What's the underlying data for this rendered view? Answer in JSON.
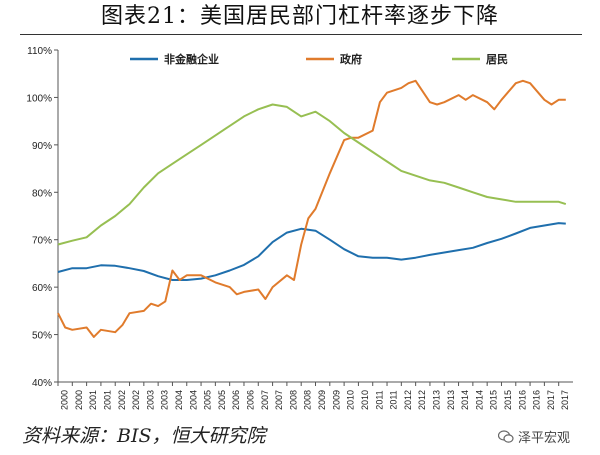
{
  "title": "图表21：美国居民部门杠杆率逐步下降",
  "source": "资料来源：BIS，恒大研究院",
  "watermark": "泽平宏观",
  "colors": {
    "nonfin": "#1f6fad",
    "gov": "#e07b2c",
    "household": "#97bf52",
    "axis": "#555555"
  },
  "chart_data": {
    "type": "line",
    "ylim": [
      40,
      110
    ],
    "y_ticks": [
      "40%",
      "50%",
      "60%",
      "70%",
      "80%",
      "90%",
      "100%",
      "110%"
    ],
    "y_tick_values": [
      40,
      50,
      60,
      70,
      80,
      90,
      100,
      110
    ],
    "x_ticks": [
      "2000",
      "2000",
      "2001",
      "2001",
      "2002",
      "2002",
      "2003",
      "2003",
      "2004",
      "2004",
      "2005",
      "2005",
      "2006",
      "2006",
      "2007",
      "2007",
      "2008",
      "2008",
      "2009",
      "2009",
      "2010",
      "2010",
      "2011",
      "2011",
      "2012",
      "2012",
      "2013",
      "2013",
      "2014",
      "2014",
      "2015",
      "2015",
      "2016",
      "2016",
      "2017",
      "2017"
    ],
    "x_start": 2000.0,
    "x_end": 2018.0,
    "legend": [
      "非金融企业",
      "政府",
      "居民"
    ],
    "legend_position": "top",
    "series": [
      {
        "name": "非金融企业",
        "color_key": "nonfin",
        "x": [
          2000.0,
          2000.5,
          2001.0,
          2001.5,
          2002.0,
          2002.5,
          2003.0,
          2003.5,
          2004.0,
          2004.5,
          2005.0,
          2005.5,
          2006.0,
          2006.5,
          2007.0,
          2007.5,
          2008.0,
          2008.5,
          2009.0,
          2009.5,
          2010.0,
          2010.5,
          2011.0,
          2011.5,
          2012.0,
          2012.5,
          2013.0,
          2013.5,
          2014.0,
          2014.5,
          2015.0,
          2015.5,
          2016.0,
          2016.5,
          2017.0,
          2017.5,
          2017.75
        ],
        "y": [
          63.2,
          64.0,
          64.0,
          64.6,
          64.5,
          64.0,
          63.4,
          62.3,
          61.5,
          61.5,
          61.8,
          62.5,
          63.5,
          64.7,
          66.5,
          69.5,
          71.5,
          72.3,
          71.9,
          70.0,
          68.0,
          66.5,
          66.2,
          66.2,
          65.8,
          66.2,
          66.8,
          67.3,
          67.8,
          68.3,
          69.3,
          70.2,
          71.3,
          72.5,
          73.0,
          73.5,
          73.4
        ]
      },
      {
        "name": "政府",
        "color_key": "gov",
        "x": [
          2000.0,
          2000.25,
          2000.5,
          2001.0,
          2001.25,
          2001.5,
          2002.0,
          2002.25,
          2002.5,
          2003.0,
          2003.25,
          2003.5,
          2003.75,
          2004.0,
          2004.25,
          2004.5,
          2005.0,
          2005.5,
          2006.0,
          2006.25,
          2006.5,
          2007.0,
          2007.25,
          2007.5,
          2008.0,
          2008.25,
          2008.5,
          2008.75,
          2009.0,
          2009.5,
          2010.0,
          2010.25,
          2010.5,
          2011.0,
          2011.25,
          2011.5,
          2012.0,
          2012.25,
          2012.5,
          2013.0,
          2013.25,
          2013.5,
          2014.0,
          2014.25,
          2014.5,
          2015.0,
          2015.25,
          2015.5,
          2016.0,
          2016.25,
          2016.5,
          2017.0,
          2017.25,
          2017.5,
          2017.75
        ],
        "y": [
          54.5,
          51.5,
          51.0,
          51.5,
          49.5,
          51.0,
          50.5,
          52.0,
          54.5,
          55.0,
          56.5,
          56.0,
          57.0,
          63.5,
          61.5,
          62.5,
          62.5,
          61.0,
          60.0,
          58.5,
          59.0,
          59.5,
          57.5,
          60.0,
          62.5,
          61.5,
          69.0,
          74.5,
          76.5,
          84.0,
          91.0,
          91.5,
          91.5,
          93.0,
          99.0,
          101.0,
          102.0,
          103.0,
          103.5,
          99.0,
          98.5,
          99.0,
          100.5,
          99.5,
          100.5,
          99.0,
          97.5,
          99.5,
          103.0,
          103.5,
          103.0,
          99.5,
          98.5,
          99.5,
          99.5
        ]
      },
      {
        "name": "居民",
        "color_key": "household",
        "x": [
          2000.0,
          2000.5,
          2001.0,
          2001.5,
          2002.0,
          2002.5,
          2003.0,
          2003.5,
          2004.0,
          2004.5,
          2005.0,
          2005.5,
          2006.0,
          2006.5,
          2007.0,
          2007.5,
          2008.0,
          2008.5,
          2009.0,
          2009.5,
          2010.0,
          2010.5,
          2011.0,
          2011.5,
          2012.0,
          2012.5,
          2013.0,
          2013.5,
          2014.0,
          2014.5,
          2015.0,
          2015.5,
          2016.0,
          2016.5,
          2017.0,
          2017.5,
          2017.75
        ],
        "y": [
          69.0,
          69.8,
          70.5,
          73.0,
          75.0,
          77.5,
          81.0,
          84.0,
          86.0,
          88.0,
          90.0,
          92.0,
          94.0,
          96.0,
          97.5,
          98.5,
          98.0,
          96.0,
          97.0,
          95.0,
          92.5,
          90.5,
          88.5,
          86.5,
          84.5,
          83.5,
          82.5,
          82.0,
          81.0,
          80.0,
          79.0,
          78.5,
          78.0,
          78.0,
          78.0,
          78.0,
          77.5
        ]
      }
    ]
  }
}
